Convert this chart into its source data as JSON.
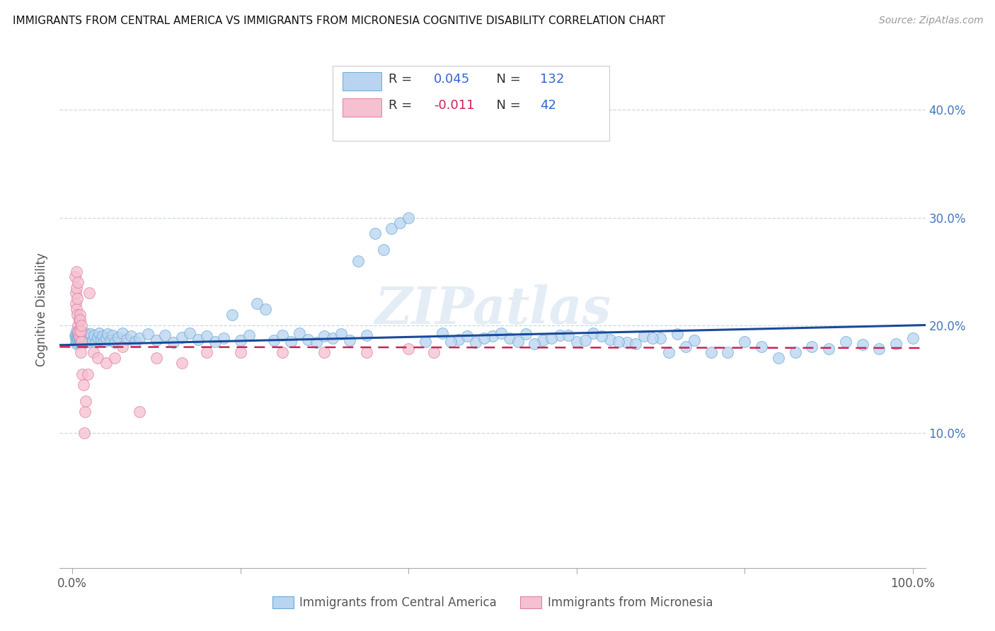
{
  "title": "IMMIGRANTS FROM CENTRAL AMERICA VS IMMIGRANTS FROM MICRONESIA COGNITIVE DISABILITY CORRELATION CHART",
  "source": "Source: ZipAtlas.com",
  "ylabel": "Cognitive Disability",
  "y_ticks": [
    0.1,
    0.2,
    0.3,
    0.4
  ],
  "y_tick_labels": [
    "10.0%",
    "20.0%",
    "30.0%",
    "40.0%"
  ],
  "legend1_label": "Immigrants from Central America",
  "legend2_label": "Immigrants from Micronesia",
  "R1": "0.045",
  "N1": "132",
  "R2": "-0.011",
  "N2": "42",
  "color_blue_fill": "#b8d4f0",
  "color_blue_edge": "#6aaad4",
  "color_pink_fill": "#f5c0d0",
  "color_pink_edge": "#e080a0",
  "color_line_blue": "#1a4a9a",
  "color_line_pink": "#cc2255",
  "color_grid": "#c8d4de",
  "background": "#ffffff",
  "watermark": "ZIPatlas",
  "blue_intercept": 0.182,
  "blue_slope": 0.018,
  "pink_intercept": 0.18,
  "pink_slope": -0.001,
  "blue_x": [
    0.003,
    0.004,
    0.004,
    0.005,
    0.005,
    0.005,
    0.006,
    0.006,
    0.006,
    0.007,
    0.007,
    0.007,
    0.008,
    0.008,
    0.008,
    0.009,
    0.009,
    0.009,
    0.01,
    0.01,
    0.01,
    0.011,
    0.011,
    0.012,
    0.012,
    0.013,
    0.013,
    0.014,
    0.015,
    0.015,
    0.016,
    0.017,
    0.018,
    0.019,
    0.02,
    0.022,
    0.024,
    0.026,
    0.028,
    0.03,
    0.032,
    0.034,
    0.036,
    0.038,
    0.04,
    0.042,
    0.045,
    0.048,
    0.05,
    0.055,
    0.06,
    0.065,
    0.07,
    0.075,
    0.08,
    0.09,
    0.1,
    0.11,
    0.12,
    0.13,
    0.14,
    0.15,
    0.16,
    0.17,
    0.18,
    0.19,
    0.2,
    0.21,
    0.22,
    0.23,
    0.24,
    0.25,
    0.26,
    0.27,
    0.28,
    0.29,
    0.3,
    0.31,
    0.32,
    0.33,
    0.34,
    0.35,
    0.36,
    0.37,
    0.38,
    0.39,
    0.4,
    0.42,
    0.44,
    0.46,
    0.48,
    0.5,
    0.52,
    0.54,
    0.56,
    0.58,
    0.6,
    0.62,
    0.64,
    0.66,
    0.68,
    0.7,
    0.72,
    0.74,
    0.76,
    0.78,
    0.8,
    0.82,
    0.84,
    0.86,
    0.88,
    0.9,
    0.92,
    0.94,
    0.96,
    0.98,
    1.0,
    0.45,
    0.47,
    0.49,
    0.51,
    0.53,
    0.55,
    0.57,
    0.59,
    0.61,
    0.63,
    0.65,
    0.67,
    0.69,
    0.71,
    0.73
  ],
  "blue_y": [
    0.19,
    0.185,
    0.192,
    0.188,
    0.183,
    0.195,
    0.186,
    0.191,
    0.184,
    0.189,
    0.193,
    0.187,
    0.19,
    0.185,
    0.188,
    0.192,
    0.186,
    0.191,
    0.184,
    0.189,
    0.193,
    0.187,
    0.19,
    0.185,
    0.188,
    0.192,
    0.186,
    0.191,
    0.184,
    0.189,
    0.193,
    0.187,
    0.19,
    0.185,
    0.188,
    0.192,
    0.186,
    0.191,
    0.184,
    0.189,
    0.193,
    0.187,
    0.19,
    0.185,
    0.188,
    0.192,
    0.186,
    0.191,
    0.184,
    0.189,
    0.193,
    0.187,
    0.19,
    0.185,
    0.188,
    0.192,
    0.186,
    0.191,
    0.184,
    0.189,
    0.193,
    0.187,
    0.19,
    0.185,
    0.188,
    0.21,
    0.186,
    0.191,
    0.22,
    0.215,
    0.186,
    0.191,
    0.185,
    0.193,
    0.187,
    0.184,
    0.19,
    0.188,
    0.192,
    0.186,
    0.26,
    0.191,
    0.285,
    0.27,
    0.29,
    0.295,
    0.3,
    0.185,
    0.193,
    0.187,
    0.184,
    0.19,
    0.188,
    0.192,
    0.186,
    0.191,
    0.185,
    0.193,
    0.187,
    0.184,
    0.19,
    0.188,
    0.192,
    0.186,
    0.175,
    0.175,
    0.185,
    0.18,
    0.17,
    0.175,
    0.18,
    0.178,
    0.185,
    0.182,
    0.178,
    0.183,
    0.188,
    0.185,
    0.19,
    0.188,
    0.193,
    0.185,
    0.183,
    0.188,
    0.191,
    0.186,
    0.19,
    0.185,
    0.183,
    0.188,
    0.175,
    0.18
  ],
  "pink_x": [
    0.003,
    0.004,
    0.004,
    0.005,
    0.005,
    0.005,
    0.006,
    0.006,
    0.007,
    0.007,
    0.007,
    0.008,
    0.008,
    0.008,
    0.009,
    0.009,
    0.01,
    0.01,
    0.011,
    0.011,
    0.012,
    0.013,
    0.014,
    0.015,
    0.016,
    0.018,
    0.02,
    0.025,
    0.03,
    0.04,
    0.05,
    0.06,
    0.08,
    0.1,
    0.13,
    0.16,
    0.2,
    0.25,
    0.3,
    0.35,
    0.4,
    0.43
  ],
  "pink_y": [
    0.245,
    0.22,
    0.23,
    0.235,
    0.215,
    0.25,
    0.21,
    0.225,
    0.24,
    0.2,
    0.195,
    0.205,
    0.19,
    0.195,
    0.21,
    0.205,
    0.195,
    0.175,
    0.2,
    0.185,
    0.155,
    0.145,
    0.1,
    0.12,
    0.13,
    0.155,
    0.23,
    0.175,
    0.17,
    0.165,
    0.17,
    0.18,
    0.12,
    0.17,
    0.165,
    0.175,
    0.175,
    0.175,
    0.175,
    0.175,
    0.178,
    0.175
  ]
}
